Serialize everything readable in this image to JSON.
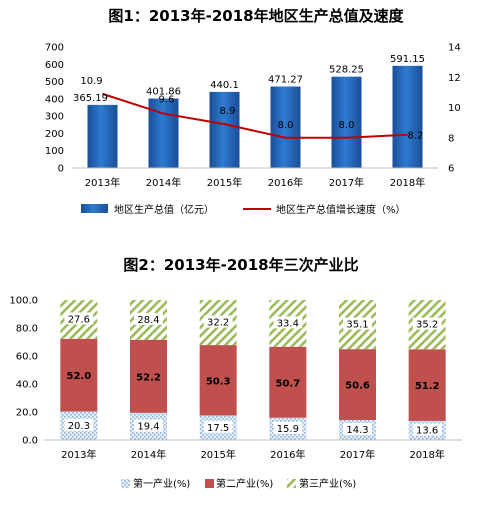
{
  "chart_data": [
    {
      "type": "bar",
      "title": "图1：2013年-2018年地区生产总值及速度",
      "categories": [
        "2013年",
        "2014年",
        "2015年",
        "2016年",
        "2017年",
        "2018年"
      ],
      "series": [
        {
          "name": "地区生产总值（亿元）",
          "type": "bar",
          "axis": "left",
          "values": [
            365.19,
            401.86,
            440.1,
            471.27,
            528.25,
            591.15
          ],
          "labels": [
            "365.19",
            "401.86",
            "440.1",
            "471.27",
            "528.25",
            "591.15"
          ]
        },
        {
          "name": "地区生产总值增长速度（%）",
          "type": "line",
          "axis": "right",
          "values": [
            10.9,
            9.6,
            8.9,
            8.0,
            8.0,
            8.2
          ],
          "labels": [
            "10.9",
            "9.6",
            "8.9",
            "8.0",
            "8.0",
            "8.2"
          ]
        }
      ],
      "ylim_left": [
        0,
        700
      ],
      "yticks_left": [
        "0",
        "100",
        "200",
        "300",
        "400",
        "500",
        "600",
        "700"
      ],
      "ylim_right": [
        6,
        14
      ],
      "yticks_right": [
        "6",
        "8",
        "10",
        "12",
        "14"
      ],
      "legend_position": "bottom",
      "grid": false,
      "colors": {
        "bar": "#1f5fb0",
        "line": "#c00000"
      }
    },
    {
      "type": "stacked-bar",
      "title": "图2：2013年-2018年三次产业比",
      "categories": [
        "2013年",
        "2014年",
        "2015年",
        "2016年",
        "2017年",
        "2018年"
      ],
      "series": [
        {
          "name": "第一产业(%)",
          "values": [
            20.3,
            19.4,
            17.5,
            15.9,
            14.3,
            13.6
          ],
          "labels": [
            "20.3",
            "19.4",
            "17.5",
            "15.9",
            "14.3",
            "13.6"
          ]
        },
        {
          "name": "第二产业(%)",
          "values": [
            52.0,
            52.2,
            50.3,
            50.7,
            50.6,
            51.2
          ],
          "labels": [
            "52.0",
            "52.2",
            "50.3",
            "50.7",
            "50.6",
            "51.2"
          ]
        },
        {
          "name": "第三产业(%)",
          "values": [
            27.6,
            28.4,
            32.2,
            33.4,
            35.1,
            35.2
          ],
          "labels": [
            "27.6",
            "28.4",
            "32.2",
            "33.4",
            "35.1",
            "35.2"
          ]
        }
      ],
      "ylim": [
        0,
        100
      ],
      "yticks": [
        "0.0",
        "20.0",
        "40.0",
        "60.0",
        "80.0",
        "100.0"
      ],
      "legend_position": "bottom",
      "grid": false,
      "colors": {
        "primary": "#c8dcef",
        "secondary": "#c0504d",
        "tertiary": "#9bbb59"
      }
    }
  ]
}
